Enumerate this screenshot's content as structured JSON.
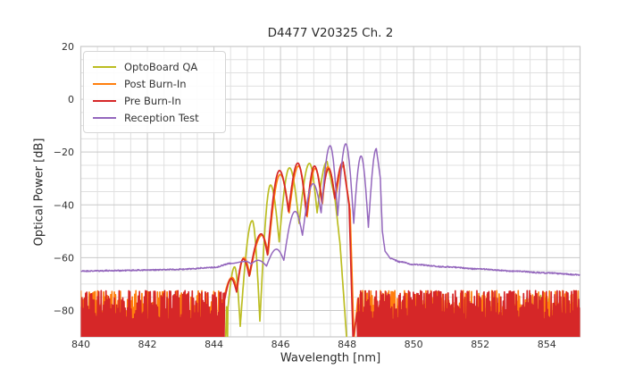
{
  "chart_data": {
    "type": "line",
    "title": "D4477 V20325 Ch. 2",
    "xlabel": "Wavelength [nm]",
    "ylabel": "Optical Power [dB]",
    "xlim": [
      840,
      855
    ],
    "ylim": [
      -90,
      20
    ],
    "x_tick_values": [
      840,
      842,
      844,
      846,
      848,
      850,
      852,
      854
    ],
    "x_tick_labels": [
      "840",
      "842",
      "844",
      "846",
      "848",
      "850",
      "852",
      "854"
    ],
    "y_tick_values": [
      20,
      0,
      -20,
      -40,
      -60,
      -80
    ],
    "y_tick_labels": [
      "20",
      "0",
      "−20",
      "−40",
      "−60",
      "−80"
    ],
    "x_minor_step": 0.5,
    "y_minor_step": 5,
    "grid": {
      "enabled": true,
      "major_color": "#c9c9c9",
      "minor_color": "#e0e0e0"
    },
    "legend": {
      "position": "upper left",
      "entries": [
        {
          "label": "OptoBoard QA",
          "color": "#bcbd22"
        },
        {
          "label": "Post Burn-In",
          "color": "#ff7f0e"
        },
        {
          "label": "Pre Burn-In",
          "color": "#d62728"
        },
        {
          "label": "Reception Test",
          "color": "#9467bd"
        }
      ]
    },
    "series": [
      {
        "name": "OptoBoard QA",
        "color": "#bcbd22",
        "width": 1.7,
        "noise": {
          "segments": [
            [
              840,
              844.42
            ],
            [
              848.12,
              855
            ]
          ],
          "style": "sparse",
          "seed": 11
        },
        "nodes": [
          [
            844.42,
            -79,
            "n"
          ],
          [
            844.62,
            -63.5,
            "p"
          ],
          [
            844.79,
            -86,
            "n"
          ],
          [
            845.15,
            -46,
            "p"
          ],
          [
            845.38,
            -84,
            "n"
          ],
          [
            845.7,
            -32.5,
            "p"
          ],
          [
            845.96,
            -54,
            "n"
          ],
          [
            846.27,
            -26,
            "p"
          ],
          [
            846.56,
            -47,
            "n"
          ],
          [
            846.87,
            -24.3,
            "p"
          ],
          [
            847.1,
            -43,
            "n"
          ],
          [
            847.4,
            -23.6,
            "p"
          ],
          [
            847.64,
            -38,
            "l"
          ],
          [
            847.79,
            -55,
            "l"
          ],
          [
            847.99,
            -91,
            "l"
          ]
        ]
      },
      {
        "name": "Post Burn-In",
        "color": "#ff7f0e",
        "width": 1.7,
        "noise": {
          "segments": [
            [
              840,
              844.3
            ],
            [
              848.32,
              855
            ]
          ],
          "style": "dense",
          "seed": 7
        },
        "nodes": [
          [
            844.3,
            -75,
            "n"
          ],
          [
            844.54,
            -67.5,
            "p"
          ],
          [
            844.7,
            -72,
            "n"
          ],
          [
            844.9,
            -60,
            "p"
          ],
          [
            845.08,
            -66.5,
            "n"
          ],
          [
            845.44,
            -51.5,
            "p"
          ],
          [
            845.63,
            -58.5,
            "n"
          ],
          [
            845.99,
            -28.5,
            "p"
          ],
          [
            846.26,
            -43,
            "n"
          ],
          [
            846.54,
            -25.3,
            "p"
          ],
          [
            846.8,
            -44.5,
            "n"
          ],
          [
            847.04,
            -26.2,
            "p"
          ],
          [
            847.26,
            -39.5,
            "n"
          ],
          [
            847.42,
            -25.6,
            "p"
          ],
          [
            847.65,
            -38,
            "n"
          ],
          [
            847.9,
            -25,
            "p"
          ],
          [
            848.09,
            -42,
            "l"
          ],
          [
            848.21,
            -90.8,
            "l"
          ]
        ]
      },
      {
        "name": "Pre Burn-In",
        "color": "#d62728",
        "width": 1.7,
        "noise": {
          "segments": [
            [
              840,
              844.32
            ],
            [
              848.3,
              855
            ]
          ],
          "style": "dense",
          "seed": 3
        },
        "nodes": [
          [
            844.32,
            -76,
            "n"
          ],
          [
            844.52,
            -68,
            "p"
          ],
          [
            844.68,
            -73,
            "n"
          ],
          [
            844.88,
            -60.5,
            "p"
          ],
          [
            845.06,
            -67,
            "n"
          ],
          [
            845.42,
            -51,
            "p"
          ],
          [
            845.61,
            -59,
            "n"
          ],
          [
            845.97,
            -27,
            "p"
          ],
          [
            846.24,
            -42.5,
            "n"
          ],
          [
            846.52,
            -24.2,
            "p"
          ],
          [
            846.78,
            -44,
            "n"
          ],
          [
            847.02,
            -25.3,
            "p"
          ],
          [
            847.24,
            -39,
            "n"
          ],
          [
            847.45,
            -26.3,
            "p"
          ],
          [
            847.63,
            -37.5,
            "n"
          ],
          [
            847.88,
            -23.8,
            "p"
          ],
          [
            848.06,
            -40,
            "l"
          ],
          [
            848.18,
            -90.8,
            "l"
          ]
        ]
      },
      {
        "name": "Reception Test",
        "color": "#9467bd",
        "width": 1.5,
        "jitter": 0.22,
        "jitter_seed": 21,
        "nodes": [
          [
            840,
            -65.1,
            "s"
          ],
          [
            841,
            -64.9,
            "s"
          ],
          [
            842,
            -64.7,
            "s"
          ],
          [
            843,
            -64.4,
            "s"
          ],
          [
            844,
            -63.7,
            "s"
          ],
          [
            844.5,
            -62.2,
            "s"
          ],
          [
            844.95,
            -61.4,
            "p"
          ],
          [
            845.12,
            -62.4,
            "n"
          ],
          [
            845.33,
            -61,
            "p"
          ],
          [
            845.58,
            -63.2,
            "n"
          ],
          [
            845.88,
            -56.8,
            "p"
          ],
          [
            846.1,
            -61,
            "n"
          ],
          [
            846.44,
            -42.5,
            "p"
          ],
          [
            846.66,
            -51.5,
            "n"
          ],
          [
            846.98,
            -32,
            "p"
          ],
          [
            847.22,
            -43,
            "n"
          ],
          [
            847.49,
            -17.6,
            "p"
          ],
          [
            847.72,
            -44,
            "n"
          ],
          [
            847.96,
            -16.9,
            "p"
          ],
          [
            848.2,
            -47,
            "n"
          ],
          [
            848.42,
            -21.5,
            "p"
          ],
          [
            848.64,
            -48.5,
            "n"
          ],
          [
            848.88,
            -18.7,
            "p"
          ],
          [
            849.0,
            -30,
            "l"
          ],
          [
            849.06,
            -50,
            "l"
          ],
          [
            849.14,
            -57.5,
            "l"
          ],
          [
            849.3,
            -60.3,
            "s"
          ],
          [
            849.6,
            -61.6,
            "s"
          ],
          [
            850.0,
            -62.6,
            "s"
          ],
          [
            851.0,
            -63.5,
            "s"
          ],
          [
            852.0,
            -64.3,
            "s"
          ],
          [
            853.0,
            -65.1,
            "s"
          ],
          [
            854.0,
            -65.8,
            "s"
          ],
          [
            855.0,
            -66.5,
            "s"
          ]
        ]
      }
    ]
  }
}
